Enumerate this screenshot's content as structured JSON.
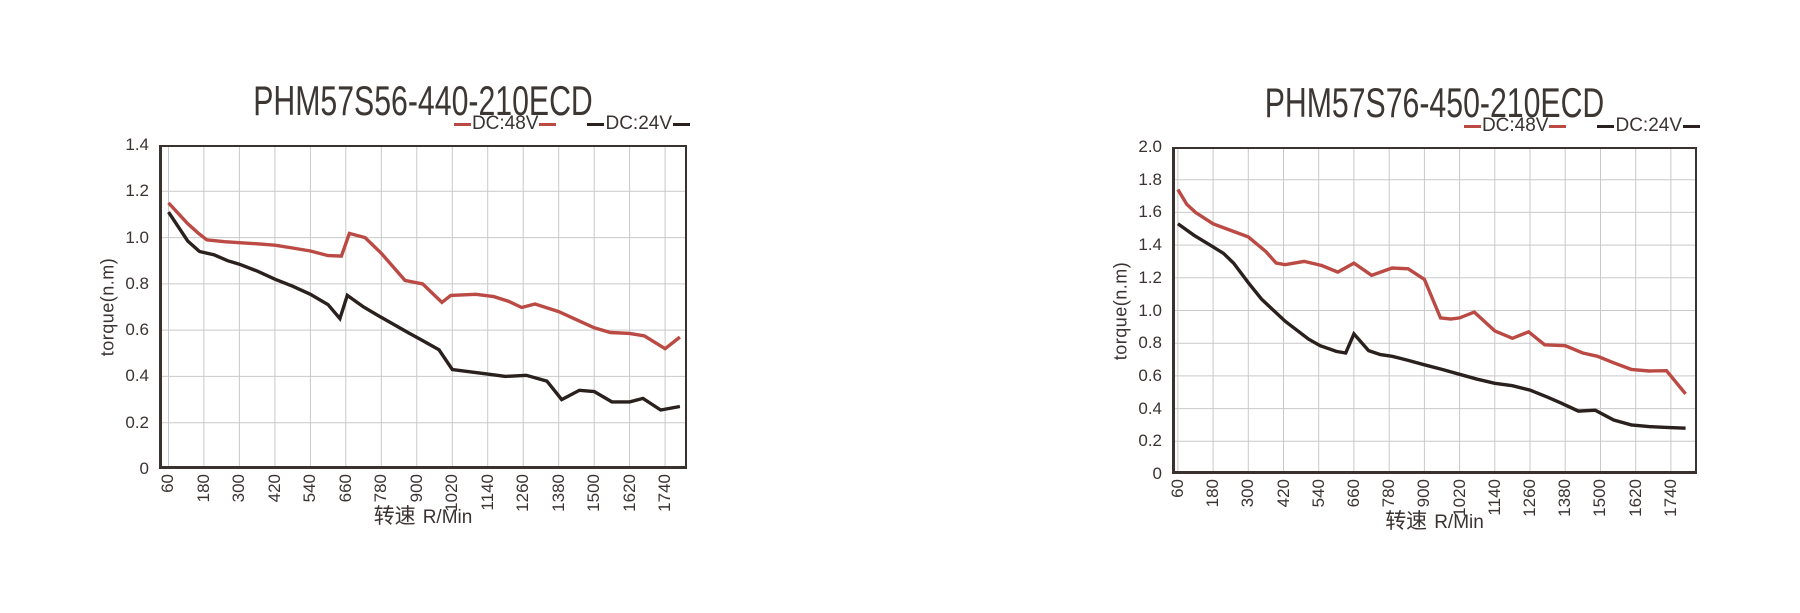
{
  "colors": {
    "background": "#ffffff",
    "grid": "#c9c9c9",
    "axis": "#3a322f",
    "text": "#3a3331",
    "dc48v_red": "#bb4a45",
    "dc24v_black": "#2a201d"
  },
  "chart_data": [
    {
      "type": "line",
      "title": "PHM57S56-440-210ECD",
      "ylabel": "torque(n.m)",
      "xlabel_cn": "转速",
      "xlabel_latin": "R/Min",
      "legend_position": "top-right",
      "grid": true,
      "ylim": [
        0,
        1.4
      ],
      "xlim": [
        28,
        1814
      ],
      "yticks": [
        {
          "label": "1.4",
          "v": 1.4
        },
        {
          "label": "1.2",
          "v": 1.2
        },
        {
          "label": "1.0",
          "v": 1.0
        },
        {
          "label": "0.8",
          "v": 0.8
        },
        {
          "label": "0.6",
          "v": 0.6
        },
        {
          "label": "0.4",
          "v": 0.4
        },
        {
          "label": "0.2",
          "v": 0.2
        },
        {
          "label": "0",
          "v": 0
        }
      ],
      "xticks": [
        60,
        180,
        300,
        420,
        540,
        660,
        780,
        900,
        1020,
        1140,
        1260,
        1380,
        1500,
        1620,
        1740
      ],
      "series": [
        {
          "name": "DC:48V",
          "color": "#bb4a45",
          "points": [
            [
              60,
              1.15
            ],
            [
              125,
              1.06
            ],
            [
              160,
              1.02
            ],
            [
              190,
              0.99
            ],
            [
              250,
              0.982
            ],
            [
              300,
              0.978
            ],
            [
              360,
              0.973
            ],
            [
              420,
              0.967
            ],
            [
              480,
              0.955
            ],
            [
              540,
              0.942
            ],
            [
              600,
              0.922
            ],
            [
              645,
              0.92
            ],
            [
              672,
              1.018
            ],
            [
              725,
              1.0
            ],
            [
              780,
              0.932
            ],
            [
              860,
              0.815
            ],
            [
              920,
              0.8
            ],
            [
              985,
              0.72
            ],
            [
              1015,
              0.75
            ],
            [
              1100,
              0.755
            ],
            [
              1160,
              0.745
            ],
            [
              1210,
              0.725
            ],
            [
              1255,
              0.698
            ],
            [
              1300,
              0.713
            ],
            [
              1380,
              0.68
            ],
            [
              1440,
              0.645
            ],
            [
              1500,
              0.61
            ],
            [
              1555,
              0.59
            ],
            [
              1620,
              0.586
            ],
            [
              1670,
              0.575
            ],
            [
              1740,
              0.52
            ],
            [
              1790,
              0.57
            ]
          ]
        },
        {
          "name": "DC:24V",
          "color": "#2a201d",
          "points": [
            [
              60,
              1.11
            ],
            [
              125,
              0.985
            ],
            [
              165,
              0.94
            ],
            [
              215,
              0.925
            ],
            [
              260,
              0.9
            ],
            [
              300,
              0.885
            ],
            [
              360,
              0.855
            ],
            [
              420,
              0.82
            ],
            [
              480,
              0.79
            ],
            [
              540,
              0.755
            ],
            [
              600,
              0.71
            ],
            [
              640,
              0.65
            ],
            [
              665,
              0.75
            ],
            [
              720,
              0.7
            ],
            [
              780,
              0.655
            ],
            [
              870,
              0.59
            ],
            [
              920,
              0.555
            ],
            [
              975,
              0.515
            ],
            [
              1020,
              0.43
            ],
            [
              1080,
              0.42
            ],
            [
              1140,
              0.41
            ],
            [
              1200,
              0.4
            ],
            [
              1270,
              0.405
            ],
            [
              1340,
              0.38
            ],
            [
              1390,
              0.3
            ],
            [
              1450,
              0.34
            ],
            [
              1500,
              0.335
            ],
            [
              1560,
              0.29
            ],
            [
              1620,
              0.29
            ],
            [
              1665,
              0.305
            ],
            [
              1725,
              0.255
            ],
            [
              1790,
              0.27
            ]
          ]
        }
      ]
    },
    {
      "type": "line",
      "title": "PHM57S76-450-210ECD",
      "ylabel": "torque(n.m)",
      "xlabel_cn": "转速",
      "xlabel_latin": "R/Min",
      "legend_position": "top-right",
      "grid": true,
      "ylim": [
        0,
        2.0
      ],
      "xlim": [
        40,
        1829
      ],
      "yticks": [
        {
          "label": "2.0",
          "v": 2.0
        },
        {
          "label": "1.8",
          "v": 1.8
        },
        {
          "label": "1.6",
          "v": 1.6
        },
        {
          "label": "1.4",
          "v": 1.4
        },
        {
          "label": "1.2",
          "v": 1.2
        },
        {
          "label": "1.0",
          "v": 1.0
        },
        {
          "label": "0.8",
          "v": 0.8
        },
        {
          "label": "0.6",
          "v": 0.6
        },
        {
          "label": "0.4",
          "v": 0.4
        },
        {
          "label": "0.2",
          "v": 0.2
        },
        {
          "label": "0",
          "v": 0
        }
      ],
      "xticks": [
        60,
        180,
        300,
        420,
        540,
        660,
        780,
        900,
        1020,
        1140,
        1260,
        1380,
        1500,
        1620,
        1740
      ],
      "series": [
        {
          "name": "DC:48V",
          "color": "#bb4a45",
          "points": [
            [
              60,
              1.74
            ],
            [
              90,
              1.65
            ],
            [
              120,
              1.6
            ],
            [
              180,
              1.53
            ],
            [
              240,
              1.49
            ],
            [
              300,
              1.45
            ],
            [
              360,
              1.36
            ],
            [
              395,
              1.29
            ],
            [
              425,
              1.28
            ],
            [
              490,
              1.3
            ],
            [
              550,
              1.275
            ],
            [
              605,
              1.235
            ],
            [
              660,
              1.29
            ],
            [
              720,
              1.215
            ],
            [
              790,
              1.26
            ],
            [
              845,
              1.255
            ],
            [
              900,
              1.19
            ],
            [
              955,
              0.955
            ],
            [
              990,
              0.948
            ],
            [
              1020,
              0.955
            ],
            [
              1070,
              0.99
            ],
            [
              1140,
              0.875
            ],
            [
              1200,
              0.83
            ],
            [
              1255,
              0.87
            ],
            [
              1310,
              0.79
            ],
            [
              1380,
              0.785
            ],
            [
              1440,
              0.74
            ],
            [
              1490,
              0.72
            ],
            [
              1545,
              0.68
            ],
            [
              1605,
              0.64
            ],
            [
              1665,
              0.63
            ],
            [
              1725,
              0.632
            ],
            [
              1790,
              0.49
            ]
          ]
        },
        {
          "name": "DC:24V",
          "color": "#2a201d",
          "points": [
            [
              60,
              1.53
            ],
            [
              115,
              1.46
            ],
            [
              170,
              1.4
            ],
            [
              215,
              1.35
            ],
            [
              250,
              1.29
            ],
            [
              300,
              1.17
            ],
            [
              345,
              1.07
            ],
            [
              425,
              0.935
            ],
            [
              505,
              0.825
            ],
            [
              545,
              0.785
            ],
            [
              600,
              0.75
            ],
            [
              632,
              0.74
            ],
            [
              660,
              0.857
            ],
            [
              710,
              0.755
            ],
            [
              750,
              0.73
            ],
            [
              790,
              0.72
            ],
            [
              845,
              0.695
            ],
            [
              900,
              0.668
            ],
            [
              960,
              0.64
            ],
            [
              1020,
              0.61
            ],
            [
              1080,
              0.58
            ],
            [
              1140,
              0.555
            ],
            [
              1200,
              0.54
            ],
            [
              1260,
              0.513
            ],
            [
              1320,
              0.47
            ],
            [
              1365,
              0.435
            ],
            [
              1425,
              0.385
            ],
            [
              1482,
              0.39
            ],
            [
              1545,
              0.33
            ],
            [
              1605,
              0.3
            ],
            [
              1665,
              0.29
            ],
            [
              1725,
              0.285
            ],
            [
              1790,
              0.28
            ]
          ]
        }
      ]
    }
  ]
}
